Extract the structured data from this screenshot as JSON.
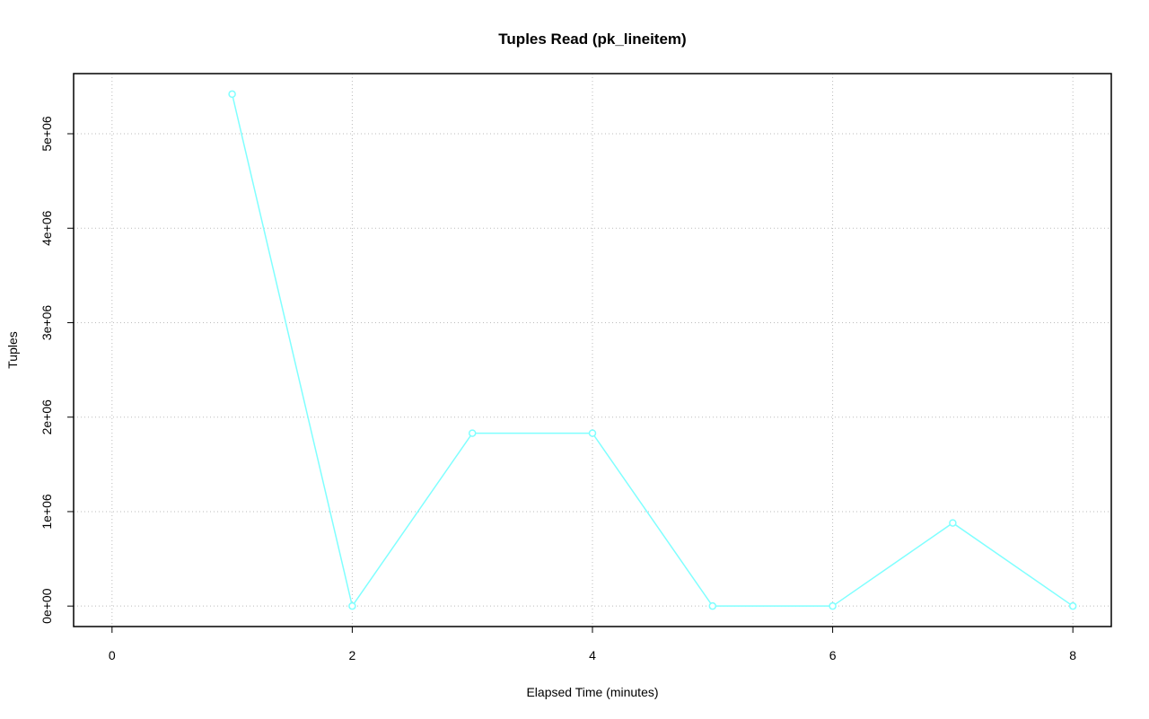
{
  "chart_data": {
    "type": "line",
    "title": "Tuples Read (pk_lineitem)",
    "x_label": "Elapsed Time (minutes)",
    "y_label": "Tuples",
    "x": [
      1,
      2,
      3,
      4,
      5,
      6,
      7,
      8
    ],
    "series": [
      {
        "color": "#80ffff",
        "values": [
          5420000,
          0,
          1830000,
          1830000,
          0,
          0,
          880000,
          0
        ]
      }
    ],
    "xlim": [
      -0.32,
      8.32
    ],
    "xticks": [
      0,
      2,
      4,
      6,
      8
    ],
    "ylim": [
      -216800,
      5636800
    ],
    "yticks": [
      {
        "value": 0,
        "label": "0e+00"
      },
      {
        "value": 1000000,
        "label": "1e+06"
      },
      {
        "value": 2000000,
        "label": "2e+06"
      },
      {
        "value": 3000000,
        "label": "3e+06"
      },
      {
        "value": 4000000,
        "label": "4e+06"
      },
      {
        "value": 5000000,
        "label": "5e+06"
      }
    ],
    "grid": true
  }
}
